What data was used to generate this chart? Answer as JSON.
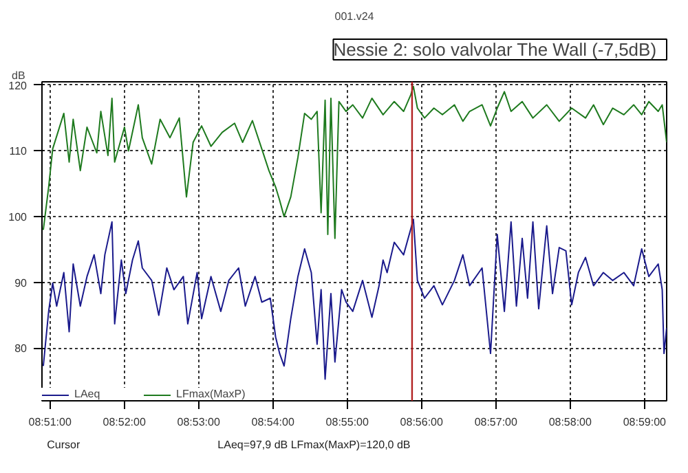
{
  "chart_data": {
    "type": "line",
    "title": "Nessie 2: solo valvolar   The Wall (-7,5dB)",
    "subtitle": "001.v24",
    "ylabel": "dB",
    "annotations": [
      "Cursor",
      "LAeq=97,9 dB  LFmax(MaxP)=120,0 dB"
    ],
    "xlim": [
      8.8482,
      8.9883
    ],
    "ylim": [
      72,
      120.5
    ],
    "xticks": [
      {
        "value": 8.85,
        "label": "08:51:00"
      },
      {
        "value": 8.866667,
        "label": "08:52:00"
      },
      {
        "value": 8.883333,
        "label": "08:53:00"
      },
      {
        "value": 8.9,
        "label": "08:54:00"
      },
      {
        "value": 8.916667,
        "label": "08:55:00"
      },
      {
        "value": 8.933333,
        "label": "08:56:00"
      },
      {
        "value": 8.95,
        "label": "08:57:00"
      },
      {
        "value": 8.966667,
        "label": "08:58:00"
      },
      {
        "value": 8.983333,
        "label": "08:59:00"
      }
    ],
    "yticks": [
      80,
      90,
      100,
      110,
      120
    ],
    "grid": true,
    "legend": "bottom left",
    "line_style": "solid",
    "ref_lines": [
      {
        "axis": "x",
        "value": 8.9312,
        "color": "#b22222"
      }
    ],
    "series": [
      {
        "name": "LAeq",
        "color": "#1a1a8c",
        "x": [
          8.8485,
          8.8497,
          8.8506,
          8.8515,
          8.8531,
          8.8543,
          8.8552,
          8.8568,
          8.8583,
          8.8599,
          8.8614,
          8.8623,
          8.8639,
          8.8645,
          8.866,
          8.867,
          8.8685,
          8.8698,
          8.8707,
          8.8728,
          8.8744,
          8.8762,
          8.8778,
          8.8799,
          8.8809,
          8.883,
          8.884,
          8.8861,
          8.8883,
          8.8901,
          8.8923,
          8.8938,
          8.896,
          8.8975,
          8.8994,
          8.9006,
          8.9015,
          8.9025,
          8.904,
          8.9056,
          8.9071,
          8.9086,
          8.9099,
          8.9108,
          8.9117,
          8.913,
          8.9139,
          8.9154,
          8.9164,
          8.9179,
          8.9201,
          8.9222,
          8.9238,
          8.9247,
          8.9256,
          8.9272,
          8.9293,
          8.9309,
          8.9315,
          8.9324,
          8.934,
          8.9361,
          8.938,
          8.9407,
          8.9426,
          8.9441,
          8.9469,
          8.9488,
          8.9503,
          8.9519,
          8.9534,
          8.9546,
          8.9559,
          8.9571,
          8.9583,
          8.9596,
          8.9614,
          8.9627,
          8.9642,
          8.9657,
          8.967,
          8.9685,
          8.9701,
          8.9719,
          8.9741,
          8.9762,
          8.9787,
          8.9809,
          8.9827,
          8.9843,
          8.9864,
          8.9873,
          8.9877,
          8.9883
        ],
        "values": [
          77.3,
          85.6,
          89.9,
          86.4,
          91.5,
          82.5,
          92.8,
          86.4,
          90.9,
          94.2,
          88.3,
          94.2,
          99.2,
          83.7,
          93.4,
          88.3,
          93.4,
          96.3,
          92.2,
          90.3,
          85,
          92.2,
          88.9,
          90.9,
          83.7,
          91.5,
          84.5,
          90.9,
          85.6,
          90.3,
          92.2,
          86.4,
          90.9,
          87,
          87.6,
          81.7,
          79.2,
          77.3,
          84.5,
          90.9,
          95.1,
          91.5,
          80.6,
          88.9,
          75.3,
          88.3,
          77.9,
          88.9,
          87,
          85.6,
          90.3,
          84.7,
          89.5,
          93.4,
          91.5,
          96.1,
          94.2,
          98.1,
          99.6,
          90.3,
          87.6,
          89.5,
          86.6,
          90.3,
          94.2,
          89.5,
          92.2,
          79.2,
          97.3,
          85.6,
          99.2,
          86.4,
          96.7,
          87.6,
          99.2,
          86,
          98.6,
          88.3,
          95.3,
          94.8,
          86.6,
          91.5,
          93.8,
          89.5,
          91.5,
          90.3,
          91.5,
          89.5,
          95.1,
          90.9,
          92.8,
          88.9,
          79.2,
          83.1
        ]
      },
      {
        "name": "LFmax(MaxP)",
        "color": "#1e7a1e",
        "x": [
          8.8485,
          8.8497,
          8.8506,
          8.8531,
          8.8543,
          8.8552,
          8.8568,
          8.8583,
          8.8605,
          8.8614,
          8.863,
          8.8639,
          8.8645,
          8.8667,
          8.8676,
          8.8698,
          8.8707,
          8.8728,
          8.8747,
          8.8769,
          8.879,
          8.8806,
          8.8821,
          8.884,
          8.8861,
          8.8886,
          8.8914,
          8.8932,
          8.8954,
          8.8975,
          8.8991,
          8.9006,
          8.9015,
          8.9025,
          8.904,
          8.9056,
          8.9071,
          8.9086,
          8.9099,
          8.9108,
          8.9117,
          8.9123,
          8.913,
          8.9139,
          8.9148,
          8.9164,
          8.9179,
          8.9201,
          8.9222,
          8.9247,
          8.9272,
          8.9293,
          8.9309,
          8.9315,
          8.9324,
          8.934,
          8.9361,
          8.938,
          8.9407,
          8.9426,
          8.9441,
          8.9469,
          8.9488,
          8.9503,
          8.9519,
          8.9534,
          8.9559,
          8.9583,
          8.9614,
          8.9642,
          8.967,
          8.9701,
          8.9719,
          8.9741,
          8.9762,
          8.9787,
          8.9809,
          8.9827,
          8.9843,
          8.9864,
          8.9873,
          8.9883
        ],
        "values": [
          98,
          104.5,
          110.3,
          115.7,
          108.3,
          114.8,
          107,
          113.6,
          109.7,
          116,
          109.3,
          118,
          108.3,
          113.6,
          110,
          117,
          112,
          108,
          114.8,
          112,
          115,
          103,
          111.3,
          113.8,
          110.7,
          112.8,
          114.2,
          111.3,
          114.6,
          110.3,
          107,
          104.5,
          102.5,
          100,
          103,
          109,
          115.7,
          114.8,
          116,
          100.6,
          117.7,
          97.3,
          118,
          96.7,
          117.5,
          116,
          117,
          115,
          118,
          115.5,
          117.5,
          116,
          118.5,
          119.8,
          116.5,
          115,
          116.5,
          115.5,
          117,
          114.5,
          116,
          117,
          113.8,
          116.5,
          119,
          116,
          117.5,
          115,
          117,
          114.5,
          116.5,
          115,
          117,
          114,
          116.5,
          115.5,
          117,
          115.5,
          117.5,
          116,
          117,
          111.3
        ]
      }
    ]
  }
}
